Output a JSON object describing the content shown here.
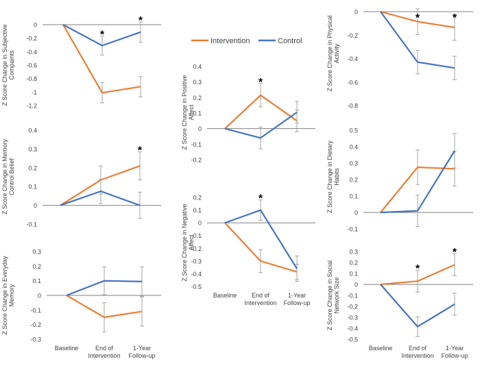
{
  "legend": {
    "entries": [
      {
        "label": "Intervention",
        "color": "#ED7D31"
      },
      {
        "label": "Control",
        "color": "#4472C4"
      }
    ],
    "placement": "top-center"
  },
  "colors": {
    "intervention": "#ED7D31",
    "control": "#4472C4",
    "axis": "#7f7f7f",
    "error_bar": "#a6a6a6"
  },
  "chart_data": [
    {
      "type": "line",
      "ylabel": "Z Score Change in Subjective Compaints",
      "categories": [
        "",
        "",
        ""
      ],
      "ylim": [
        -1.2,
        0
      ],
      "yticks": [
        "0",
        "-0.2",
        "-0.4",
        "-0.6",
        "-0.8",
        "-1",
        "-1.2"
      ],
      "asterisk_categories": [
        1,
        2
      ],
      "series": [
        {
          "name": "Intervention",
          "values": [
            0,
            -1.01,
            -0.92
          ],
          "error": [
            0,
            0.15,
            0.15
          ]
        },
        {
          "name": "Control",
          "values": [
            0,
            -0.31,
            -0.11
          ],
          "error": [
            0,
            0.14,
            0.15
          ]
        }
      ]
    },
    {
      "type": "line",
      "ylabel": "Z Score Change in Memory Control Belief",
      "categories": [
        "",
        "",
        ""
      ],
      "ylim": [
        -0.1,
        0.4
      ],
      "yticks": [
        "0.4",
        "0.3",
        "0.2",
        "0.1",
        "0",
        "-0.1"
      ],
      "asterisk_categories": [
        2
      ],
      "series": [
        {
          "name": "Intervention",
          "values": [
            0,
            0.135,
            0.21
          ],
          "error": [
            0,
            0.075,
            0.075
          ]
        },
        {
          "name": "Control",
          "values": [
            0,
            0.075,
            0.0
          ],
          "error": [
            0,
            0.065,
            0.07
          ]
        }
      ]
    },
    {
      "type": "line",
      "ylabel": "Z Score Change in Everyday Memory",
      "categories": [
        "Baseline",
        "End of Intervention",
        "1-Year Follow-up"
      ],
      "ylim": [
        -0.3,
        0.3
      ],
      "yticks": [
        "0.3",
        "0.2",
        "0.1",
        "0",
        "-0.1",
        "-0.2",
        "-0.3"
      ],
      "asterisk_categories": [],
      "series": [
        {
          "name": "Intervention",
          "values": [
            0,
            -0.15,
            -0.11
          ],
          "error": [
            0,
            0.1,
            0.1
          ]
        },
        {
          "name": "Control",
          "values": [
            0,
            0.1,
            0.095
          ],
          "error": [
            0,
            0.095,
            0.1
          ]
        }
      ]
    },
    {
      "type": "line",
      "ylabel": "Z Score Change in Positive Affect",
      "categories": [
        "",
        "",
        ""
      ],
      "ylim": [
        -0.2,
        0.4
      ],
      "yticks": [
        "0.4",
        "0.3",
        "0.2",
        "0.1",
        "0",
        "-0.1",
        "-0.2"
      ],
      "asterisk_categories": [
        1
      ],
      "series": [
        {
          "name": "Intervention",
          "values": [
            0,
            0.215,
            0.05
          ],
          "error": [
            0,
            0.075,
            0.07
          ]
        },
        {
          "name": "Control",
          "values": [
            0,
            -0.06,
            0.105
          ],
          "error": [
            0,
            0.07,
            0.07
          ]
        }
      ]
    },
    {
      "type": "line",
      "ylabel": "Z Score Change in Negative Affect",
      "categories": [
        "Baseline",
        "End of Intervention",
        "1-Year Follow-up"
      ],
      "ylim": [
        -0.5,
        0.2
      ],
      "yticks": [
        "0.2",
        "0.1",
        "0",
        "-0.1",
        "-0.2",
        "-0.3",
        "-0.4",
        "-0.5"
      ],
      "asterisk_categories": [
        1
      ],
      "series": [
        {
          "name": "Intervention",
          "values": [
            0,
            -0.3,
            -0.385
          ],
          "error": [
            0,
            0.09,
            0.06
          ]
        },
        {
          "name": "Control",
          "values": [
            0,
            0.1,
            -0.36
          ],
          "error": [
            0,
            0.08,
            0.1
          ]
        }
      ]
    },
    {
      "type": "line",
      "ylabel": "Z Score Change in Physical Activity",
      "categories": [
        "",
        "",
        ""
      ],
      "ylim": [
        -0.8,
        0
      ],
      "yticks": [
        "0",
        "-0.2",
        "-0.4",
        "-0.6",
        "-0.8"
      ],
      "asterisk_categories": [
        1,
        2
      ],
      "series": [
        {
          "name": "Intervention",
          "values": [
            0,
            -0.085,
            -0.135
          ],
          "error": [
            0,
            0.11,
            0.11
          ]
        },
        {
          "name": "Control",
          "values": [
            0,
            -0.43,
            -0.48
          ],
          "error": [
            0,
            0.1,
            0.1
          ]
        }
      ]
    },
    {
      "type": "line",
      "ylabel": "Z Score Change in Dietary Habits",
      "categories": [
        "",
        "",
        ""
      ],
      "ylim": [
        -0.1,
        0.5
      ],
      "yticks": [
        "0.5",
        "0.4",
        "0.3",
        "0.2",
        "0.1",
        "0",
        "-0.1"
      ],
      "asterisk_categories": [],
      "series": [
        {
          "name": "Intervention",
          "values": [
            0,
            0.275,
            0.265
          ],
          "error": [
            0,
            0.105,
            0.105
          ]
        },
        {
          "name": "Control",
          "values": [
            0,
            0.01,
            0.375
          ],
          "error": [
            0,
            0.095,
            0.105
          ]
        }
      ]
    },
    {
      "type": "line",
      "ylabel": "Z Score Change in Social Network Size",
      "categories": [
        "Baseline",
        "End of Intervention",
        "1-Year Follow-up"
      ],
      "ylim": [
        -0.5,
        0.3
      ],
      "yticks": [
        "0.3",
        "0.2",
        "0.1",
        "0",
        "-0.1",
        "-0.2",
        "-0.3",
        "-0.4",
        "-0.5"
      ],
      "asterisk_categories": [
        1,
        2
      ],
      "series": [
        {
          "name": "Intervention",
          "values": [
            0,
            0.03,
            0.18
          ],
          "error": [
            0,
            0.1,
            0.1
          ]
        },
        {
          "name": "Control",
          "values": [
            0,
            -0.385,
            -0.18
          ],
          "error": [
            0,
            0.09,
            0.1
          ]
        }
      ]
    }
  ]
}
